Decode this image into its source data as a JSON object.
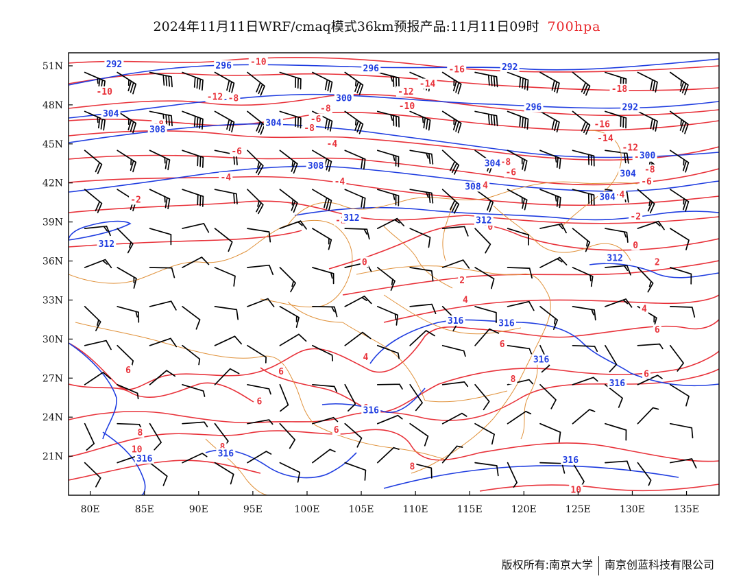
{
  "title": {
    "text": "2024年11月11日WRF/cmaq模式36km预报产品:11月11日09时",
    "level": "700hpa"
  },
  "axes": {
    "lat_ticks": [
      "51N",
      "48N",
      "45N",
      "42N",
      "39N",
      "36N",
      "33N",
      "30N",
      "27N",
      "24N",
      "21N"
    ],
    "lon_ticks": [
      "80E",
      "85E",
      "90E",
      "95E",
      "100E",
      "105E",
      "110E",
      "115E",
      "120E",
      "125E",
      "130E",
      "135E"
    ],
    "lon_range": [
      78,
      138
    ],
    "lat_range": [
      18,
      52
    ]
  },
  "colors": {
    "temperature": "#e8323a",
    "height": "#1f3de0",
    "border": "#e0913a",
    "barb": "#000000"
  },
  "footer": {
    "left": "版权所有:南京大学",
    "right": "南京创蓝科技有限公司"
  },
  "map_data": {
    "temperature_labels": [
      {
        "text": "-10",
        "lon": 95.5,
        "lat": 51.3
      },
      {
        "text": "-10",
        "lon": 81.3,
        "lat": 49.0
      },
      {
        "text": "-12",
        "lon": 91.5,
        "lat": 48.6
      },
      {
        "text": "-8",
        "lon": 93.2,
        "lat": 48.5
      },
      {
        "text": "-8",
        "lon": 101.7,
        "lat": 47.7
      },
      {
        "text": "-6",
        "lon": 100.8,
        "lat": 46.9
      },
      {
        "text": "-8",
        "lon": 100.2,
        "lat": 46.2
      },
      {
        "text": "-8",
        "lon": 86.3,
        "lat": 46.5
      },
      {
        "text": "-4",
        "lon": 102.3,
        "lat": 45.0
      },
      {
        "text": "-6",
        "lon": 93.5,
        "lat": 44.4
      },
      {
        "text": "-4",
        "lon": 92.5,
        "lat": 42.4
      },
      {
        "text": "-4",
        "lon": 103.0,
        "lat": 42.1
      },
      {
        "text": "-2",
        "lon": 84.2,
        "lat": 40.7
      },
      {
        "text": "-2",
        "lon": 103.1,
        "lat": 39.1
      },
      {
        "text": "-12",
        "lon": 109.1,
        "lat": 49.0
      },
      {
        "text": "-10",
        "lon": 109.2,
        "lat": 47.9
      },
      {
        "text": "-14",
        "lon": 111.1,
        "lat": 49.6
      },
      {
        "text": "-16",
        "lon": 113.8,
        "lat": 50.7
      },
      {
        "text": "-18",
        "lon": 128.8,
        "lat": 49.2
      },
      {
        "text": "-16",
        "lon": 127.2,
        "lat": 46.5
      },
      {
        "text": "-14",
        "lon": 127.5,
        "lat": 45.4
      },
      {
        "text": "-12",
        "lon": 129.8,
        "lat": 44.7
      },
      {
        "text": "-10",
        "lon": 130.9,
        "lat": 44.0
      },
      {
        "text": "-8",
        "lon": 131.6,
        "lat": 43.0
      },
      {
        "text": "-6",
        "lon": 131.3,
        "lat": 42.1
      },
      {
        "text": "-4",
        "lon": 128.8,
        "lat": 41.1
      },
      {
        "text": "-2",
        "lon": 130.3,
        "lat": 39.4
      },
      {
        "text": "-8",
        "lon": 118.3,
        "lat": 43.6
      },
      {
        "text": "-6",
        "lon": 118.8,
        "lat": 42.8
      },
      {
        "text": "-4",
        "lon": 116.2,
        "lat": 41.8
      },
      {
        "text": "0",
        "lon": 116.9,
        "lat": 38.6
      },
      {
        "text": "0",
        "lon": 130.3,
        "lat": 37.2
      },
      {
        "text": "0",
        "lon": 105.3,
        "lat": 35.9
      },
      {
        "text": "2",
        "lon": 132.3,
        "lat": 35.9
      },
      {
        "text": "2",
        "lon": 114.3,
        "lat": 34.5
      },
      {
        "text": "4",
        "lon": 114.6,
        "lat": 33.0
      },
      {
        "text": "4",
        "lon": 131.1,
        "lat": 32.3
      },
      {
        "text": "6",
        "lon": 132.3,
        "lat": 30.7
      },
      {
        "text": "6",
        "lon": 118.0,
        "lat": 29.6
      },
      {
        "text": "4",
        "lon": 105.4,
        "lat": 28.6
      },
      {
        "text": "6",
        "lon": 131.3,
        "lat": 27.3
      },
      {
        "text": "6",
        "lon": 83.5,
        "lat": 27.6
      },
      {
        "text": "6",
        "lon": 97.6,
        "lat": 27.5
      },
      {
        "text": "6",
        "lon": 95.6,
        "lat": 25.2
      },
      {
        "text": "6",
        "lon": 102.7,
        "lat": 23.0
      },
      {
        "text": "6",
        "lon": 105.4,
        "lat": 24.7
      },
      {
        "text": "8",
        "lon": 84.6,
        "lat": 22.8
      },
      {
        "text": "8",
        "lon": 92.2,
        "lat": 21.7
      },
      {
        "text": "8",
        "lon": 119.0,
        "lat": 26.9
      },
      {
        "text": "8",
        "lon": 109.7,
        "lat": 20.2
      },
      {
        "text": "10",
        "lon": 84.3,
        "lat": 21.5
      },
      {
        "text": "10",
        "lon": 124.8,
        "lat": 18.4
      }
    ],
    "height_labels": [
      {
        "text": "292",
        "lon": 82.2,
        "lat": 51.1
      },
      {
        "text": "296",
        "lon": 92.3,
        "lat": 51.0
      },
      {
        "text": "296",
        "lon": 105.9,
        "lat": 50.8
      },
      {
        "text": "292",
        "lon": 118.7,
        "lat": 50.9
      },
      {
        "text": "300",
        "lon": 103.4,
        "lat": 48.5
      },
      {
        "text": "296",
        "lon": 120.9,
        "lat": 47.8
      },
      {
        "text": "292",
        "lon": 129.8,
        "lat": 47.8
      },
      {
        "text": "304",
        "lon": 81.9,
        "lat": 47.3
      },
      {
        "text": "304",
        "lon": 96.9,
        "lat": 46.6
      },
      {
        "text": "308",
        "lon": 86.2,
        "lat": 46.1
      },
      {
        "text": "308",
        "lon": 100.8,
        "lat": 43.3
      },
      {
        "text": "304",
        "lon": 117.1,
        "lat": 43.5
      },
      {
        "text": "300",
        "lon": 131.4,
        "lat": 44.1
      },
      {
        "text": "304",
        "lon": 129.6,
        "lat": 42.7
      },
      {
        "text": "308",
        "lon": 115.3,
        "lat": 41.7
      },
      {
        "text": "304",
        "lon": 127.7,
        "lat": 40.9
      },
      {
        "text": "312",
        "lon": 104.1,
        "lat": 39.3
      },
      {
        "text": "312",
        "lon": 116.3,
        "lat": 39.1
      },
      {
        "text": "312",
        "lon": 81.5,
        "lat": 37.3
      },
      {
        "text": "312",
        "lon": 128.4,
        "lat": 36.2
      },
      {
        "text": "316",
        "lon": 113.7,
        "lat": 31.4
      },
      {
        "text": "316",
        "lon": 118.4,
        "lat": 31.2
      },
      {
        "text": "316",
        "lon": 121.6,
        "lat": 28.4
      },
      {
        "text": "316",
        "lon": 128.6,
        "lat": 26.6
      },
      {
        "text": "316",
        "lon": 105.9,
        "lat": 24.5
      },
      {
        "text": "316",
        "lon": 85.0,
        "lat": 20.8
      },
      {
        "text": "316",
        "lon": 92.5,
        "lat": 21.2
      },
      {
        "text": "316",
        "lon": 124.3,
        "lat": 20.7
      }
    ]
  }
}
